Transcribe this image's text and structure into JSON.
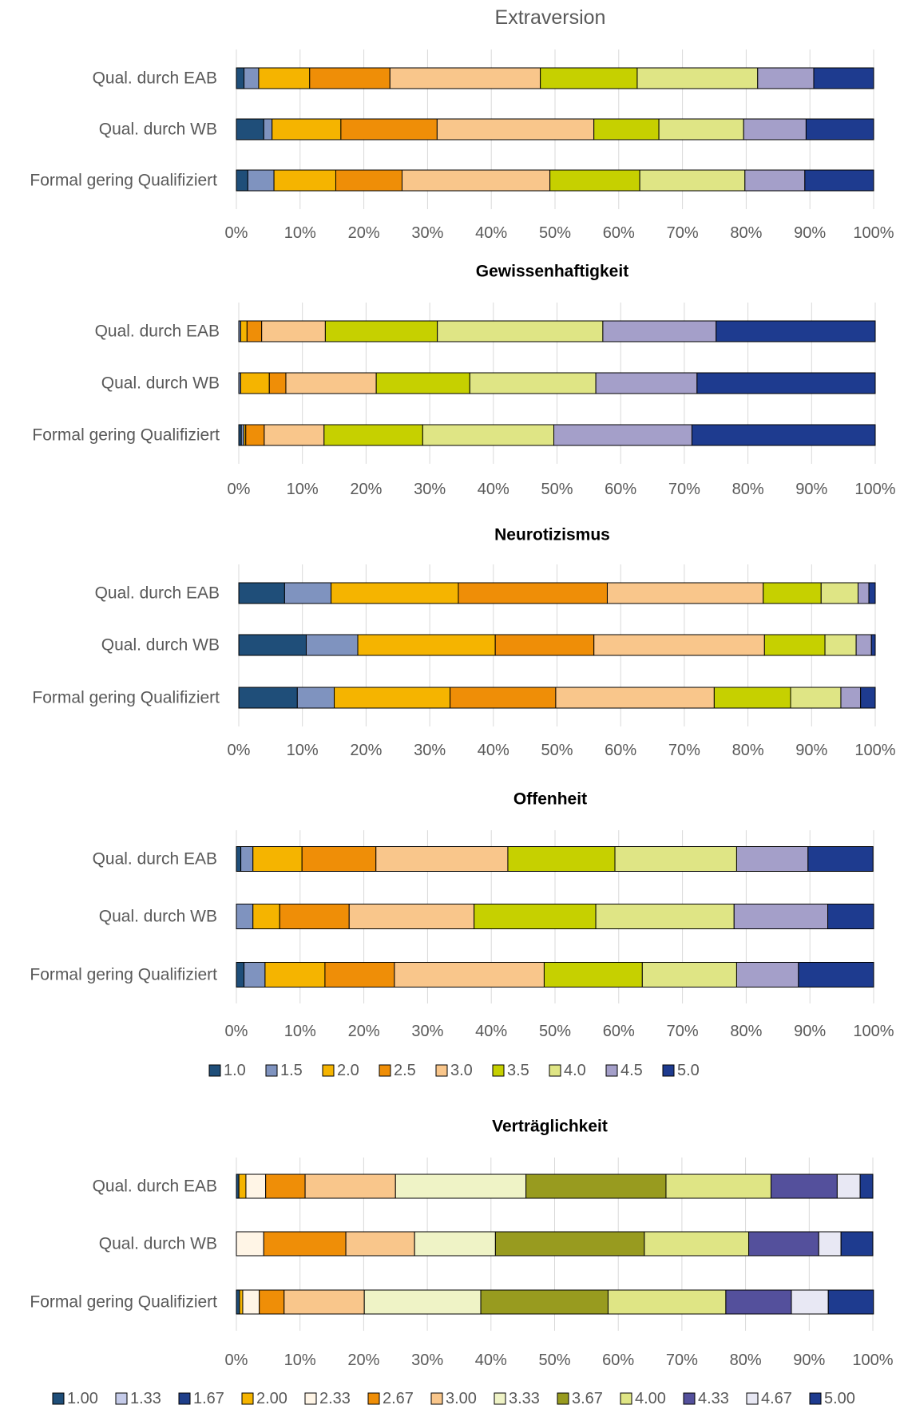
{
  "chart_data": [
    {
      "type": "bar",
      "orientation": "horizontal",
      "stacked": "percent",
      "title": "Extraversion",
      "categories": [
        "Qual. durch EAB",
        "Qual. durch WB",
        "Formal gering Qualifiziert"
      ],
      "x_ticks": [
        "0%",
        "10%",
        "20%",
        "30%",
        "40%",
        "50%",
        "60%",
        "70%",
        "80%",
        "90%",
        "100%"
      ],
      "xlim": [
        0,
        100
      ],
      "grid": true,
      "series": [
        {
          "name": "1.0",
          "color": "#1f4e79",
          "values": [
            1.2,
            4.3,
            1.8
          ]
        },
        {
          "name": "1.5",
          "color": "#7f93bf",
          "values": [
            2.3,
            1.3,
            4.1
          ]
        },
        {
          "name": "2.0",
          "color": "#f5b400",
          "values": [
            8.0,
            10.8,
            9.7
          ]
        },
        {
          "name": "2.5",
          "color": "#ef8e07",
          "values": [
            12.6,
            15.1,
            10.4
          ]
        },
        {
          "name": "3.0",
          "color": "#f9c68b",
          "values": [
            23.6,
            24.6,
            23.2
          ]
        },
        {
          "name": "3.5",
          "color": "#c6d000",
          "values": [
            15.2,
            10.2,
            14.1
          ]
        },
        {
          "name": "4.0",
          "color": "#dfe585",
          "values": [
            18.9,
            13.3,
            16.5
          ]
        },
        {
          "name": "4.5",
          "color": "#a49fc9",
          "values": [
            8.8,
            9.8,
            9.4
          ]
        },
        {
          "name": "5.0",
          "color": "#1e3b8f",
          "values": [
            9.4,
            10.6,
            10.8
          ]
        }
      ]
    },
    {
      "type": "bar",
      "orientation": "horizontal",
      "stacked": "percent",
      "title": "Gewissenhaftigkeit",
      "categories": [
        "Qual. durch EAB",
        "Qual. durch WB",
        "Formal gering Qualifiziert"
      ],
      "x_ticks": [
        "0%",
        "10%",
        "20%",
        "30%",
        "40%",
        "50%",
        "60%",
        "70%",
        "80%",
        "90%",
        "100%"
      ],
      "xlim": [
        0,
        100
      ],
      "grid": true,
      "series": [
        {
          "name": "1.0",
          "color": "#1f4e79",
          "values": [
            0.0,
            0.0,
            0.4
          ]
        },
        {
          "name": "1.5",
          "color": "#7f93bf",
          "values": [
            0.3,
            0.3,
            0.4
          ]
        },
        {
          "name": "2.0",
          "color": "#f5b400",
          "values": [
            1.0,
            4.5,
            0.3
          ]
        },
        {
          "name": "2.5",
          "color": "#ef8e07",
          "values": [
            2.3,
            2.6,
            2.9
          ]
        },
        {
          "name": "3.0",
          "color": "#f9c68b",
          "values": [
            10.0,
            14.2,
            9.4
          ]
        },
        {
          "name": "3.5",
          "color": "#c6d000",
          "values": [
            17.6,
            14.7,
            15.5
          ]
        },
        {
          "name": "4.0",
          "color": "#dfe585",
          "values": [
            26.0,
            19.8,
            20.6
          ]
        },
        {
          "name": "4.5",
          "color": "#a49fc9",
          "values": [
            17.8,
            15.9,
            21.7
          ]
        },
        {
          "name": "5.0",
          "color": "#1e3b8f",
          "values": [
            25.0,
            28.0,
            28.8
          ]
        }
      ]
    },
    {
      "type": "bar",
      "orientation": "horizontal",
      "stacked": "percent",
      "title": "Neurotizismus",
      "categories": [
        "Qual. durch EAB",
        "Qual. durch WB",
        "Formal gering Qualifiziert"
      ],
      "x_ticks": [
        "0%",
        "10%",
        "20%",
        "30%",
        "40%",
        "50%",
        "60%",
        "70%",
        "80%",
        "90%",
        "100%"
      ],
      "xlim": [
        0,
        100
      ],
      "grid": true,
      "series": [
        {
          "name": "1.0",
          "color": "#1f4e79",
          "values": [
            7.2,
            10.6,
            9.2
          ]
        },
        {
          "name": "1.5",
          "color": "#7f93bf",
          "values": [
            7.3,
            8.1,
            5.8
          ]
        },
        {
          "name": "2.0",
          "color": "#f5b400",
          "values": [
            20.0,
            21.6,
            18.2
          ]
        },
        {
          "name": "2.5",
          "color": "#ef8e07",
          "values": [
            23.4,
            15.5,
            16.6
          ]
        },
        {
          "name": "3.0",
          "color": "#f9c68b",
          "values": [
            24.5,
            26.8,
            24.9
          ]
        },
        {
          "name": "3.5",
          "color": "#c6d000",
          "values": [
            9.1,
            9.5,
            12.0
          ]
        },
        {
          "name": "4.0",
          "color": "#dfe585",
          "values": [
            5.8,
            4.9,
            7.9
          ]
        },
        {
          "name": "4.5",
          "color": "#a49fc9",
          "values": [
            1.7,
            2.4,
            3.1
          ]
        },
        {
          "name": "5.0",
          "color": "#1e3b8f",
          "values": [
            1.0,
            0.6,
            2.3
          ]
        }
      ]
    },
    {
      "type": "bar",
      "orientation": "horizontal",
      "stacked": "percent",
      "title": "Offenheit",
      "categories": [
        "Qual. durch EAB",
        "Qual. durch WB",
        "Formal gering Qualifiziert"
      ],
      "x_ticks": [
        "0%",
        "10%",
        "20%",
        "30%",
        "40%",
        "50%",
        "60%",
        "70%",
        "80%",
        "90%",
        "100%"
      ],
      "xlim": [
        0,
        100
      ],
      "grid": true,
      "legend_position": "bottom",
      "series": [
        {
          "name": "1.0",
          "color": "#1f4e79",
          "values": [
            0.7,
            0.0,
            1.2
          ]
        },
        {
          "name": "1.5",
          "color": "#7f93bf",
          "values": [
            1.9,
            2.6,
            3.3
          ]
        },
        {
          "name": "2.0",
          "color": "#f5b400",
          "values": [
            7.7,
            4.2,
            9.4
          ]
        },
        {
          "name": "2.5",
          "color": "#ef8e07",
          "values": [
            11.6,
            10.9,
            10.9
          ]
        },
        {
          "name": "3.0",
          "color": "#f9c68b",
          "values": [
            20.7,
            19.6,
            23.5
          ]
        },
        {
          "name": "3.5",
          "color": "#c6d000",
          "values": [
            16.8,
            19.1,
            15.4
          ]
        },
        {
          "name": "4.0",
          "color": "#dfe585",
          "values": [
            19.1,
            21.7,
            14.8
          ]
        },
        {
          "name": "4.5",
          "color": "#a49fc9",
          "values": [
            11.2,
            14.7,
            9.7
          ]
        },
        {
          "name": "5.0",
          "color": "#1e3b8f",
          "values": [
            10.2,
            7.2,
            11.8
          ]
        }
      ]
    },
    {
      "type": "bar",
      "orientation": "horizontal",
      "stacked": "percent",
      "title": "Verträglichkeit",
      "categories": [
        "Qual. durch EAB",
        "Qual. durch WB",
        "Formal gering Qualifiziert"
      ],
      "x_ticks": [
        "0%",
        "10%",
        "20%",
        "30%",
        "40%",
        "50%",
        "60%",
        "70%",
        "80%",
        "90%",
        "100%"
      ],
      "xlim": [
        0,
        100
      ],
      "grid": true,
      "legend_position": "bottom",
      "series": [
        {
          "name": "1.00",
          "color": "#1f4e79",
          "values": [
            0.4,
            0.0,
            0.5
          ]
        },
        {
          "name": "1.33",
          "color": "#c5cbe9",
          "values": [
            0.0,
            0.0,
            0.0
          ]
        },
        {
          "name": "1.67",
          "color": "#1f3f8a",
          "values": [
            0.0,
            0.0,
            0.0
          ]
        },
        {
          "name": "2.00",
          "color": "#f5b400",
          "values": [
            1.1,
            0.0,
            0.5
          ]
        },
        {
          "name": "2.33",
          "color": "#fff5e6",
          "values": [
            3.1,
            4.3,
            2.6
          ]
        },
        {
          "name": "2.67",
          "color": "#ef8e07",
          "values": [
            6.2,
            12.9,
            3.9
          ]
        },
        {
          "name": "3.00",
          "color": "#f9c68b",
          "values": [
            14.2,
            10.8,
            12.6
          ]
        },
        {
          "name": "3.33",
          "color": "#eff3c6",
          "values": [
            20.5,
            12.7,
            18.3
          ]
        },
        {
          "name": "3.67",
          "color": "#989b1f",
          "values": [
            22.0,
            23.4,
            20.0
          ]
        },
        {
          "name": "4.00",
          "color": "#dfe585",
          "values": [
            16.5,
            16.4,
            18.5
          ]
        },
        {
          "name": "4.33",
          "color": "#54509c",
          "values": [
            10.4,
            11.0,
            10.3
          ]
        },
        {
          "name": "4.67",
          "color": "#e8e8f4",
          "values": [
            3.6,
            3.5,
            5.8
          ]
        },
        {
          "name": "5.00",
          "color": "#1e3b8f",
          "values": [
            2.0,
            5.0,
            7.1
          ]
        }
      ]
    }
  ]
}
